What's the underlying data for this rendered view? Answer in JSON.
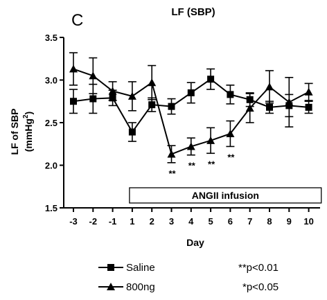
{
  "panel_letter": "C",
  "chart_data": {
    "type": "line",
    "title": "LF (SBP)",
    "xlabel": "Day",
    "ylabel": "LF of SBP",
    "ylabel_unit_main": "(mmHg",
    "ylabel_unit_sup": "2",
    "ylabel_unit_close": ")",
    "x": [
      -3,
      -2,
      -1,
      1,
      2,
      3,
      4,
      5,
      6,
      7,
      8,
      9,
      10
    ],
    "x_tick_labels": [
      "-3",
      "-2",
      "-1",
      "1",
      "2",
      "3",
      "4",
      "5",
      "6",
      "7",
      "8",
      "9",
      "10"
    ],
    "ylim": [
      1.5,
      3.5
    ],
    "y_ticks": [
      1.5,
      2.0,
      2.5,
      3.0,
      3.5
    ],
    "y_tick_labels": [
      "1.5",
      "2.0",
      "2.5",
      "3.0",
      "3.5"
    ],
    "series": [
      {
        "name": "Saline",
        "marker": "square",
        "values": [
          2.75,
          2.78,
          2.79,
          2.39,
          2.71,
          2.69,
          2.85,
          3.01,
          2.83,
          2.77,
          2.68,
          2.7,
          2.68
        ],
        "errors": [
          0.14,
          0.17,
          0.09,
          0.11,
          0.08,
          0.09,
          0.12,
          0.12,
          0.11,
          0.08,
          0.07,
          0.13,
          0.07
        ]
      },
      {
        "name": "800ng",
        "marker": "triangle",
        "values": [
          3.13,
          3.05,
          2.87,
          2.81,
          2.97,
          2.13,
          2.22,
          2.29,
          2.37,
          2.67,
          2.92,
          2.74,
          2.86
        ],
        "errors": [
          0.19,
          0.21,
          0.11,
          0.17,
          0.2,
          0.1,
          0.1,
          0.15,
          0.15,
          0.17,
          0.19,
          0.29,
          0.1
        ]
      }
    ],
    "annotations": [
      {
        "x": 3,
        "text": "**"
      },
      {
        "x": 4,
        "text": "**"
      },
      {
        "x": 5,
        "text": "**"
      },
      {
        "x": 6,
        "text": "**"
      }
    ],
    "infusion_box": {
      "label": "ANGII infusion",
      "x_start": 1,
      "x_end": 10.5
    },
    "legend": [
      {
        "marker": "square",
        "label": "Saline",
        "sig": "**p<0.01"
      },
      {
        "marker": "triangle",
        "label": "800ng",
        "sig": "*p<0.05"
      }
    ]
  }
}
